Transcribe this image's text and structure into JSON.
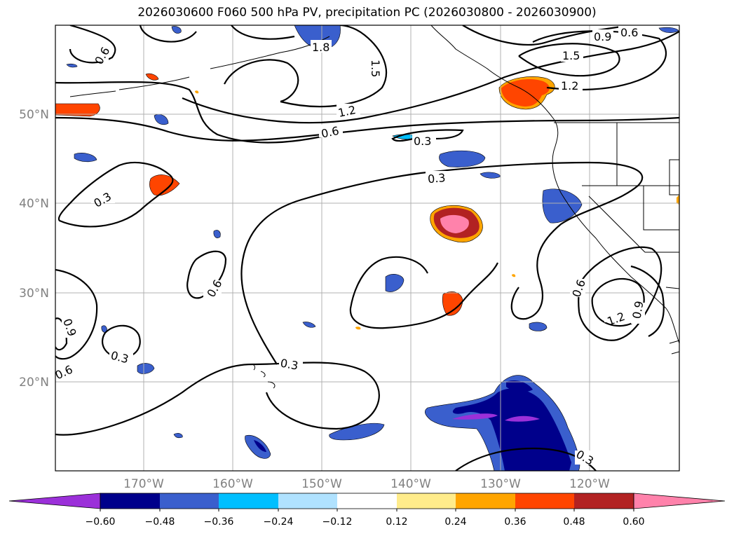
{
  "title": "2026030600 F060 500 hPa PV, precipitation PC (2026030800 - 2026030900)",
  "map": {
    "lat_labels": [
      "50°N",
      "40°N",
      "30°N",
      "20°N"
    ],
    "lon_labels": [
      "170°W",
      "160°W",
      "150°W",
      "140°W",
      "130°W",
      "120°W"
    ],
    "contour_labels": [
      "0.6",
      "1.8",
      "1.5",
      "0.9",
      "0.6",
      "1.5",
      "1.2",
      "1.2",
      "0.6",
      "0.3",
      "0.3",
      "0.3",
      "0.6",
      "0.6",
      "1.2",
      "0.9",
      "0.9",
      "0.3",
      "0.6",
      "0.3",
      "0.3"
    ]
  },
  "colorbar": {
    "colors": [
      "#9b30d9",
      "#00008b",
      "#3a5fcd",
      "#00bfff",
      "#b0e2ff",
      "#ffffff",
      "#ffec8b",
      "#ffa500",
      "#ff4500",
      "#b22222",
      "#ff82ab"
    ],
    "ticks": [
      "−0.60",
      "−0.48",
      "−0.36",
      "−0.24",
      "−0.12",
      "0.12",
      "0.24",
      "0.36",
      "0.48",
      "0.60"
    ]
  }
}
